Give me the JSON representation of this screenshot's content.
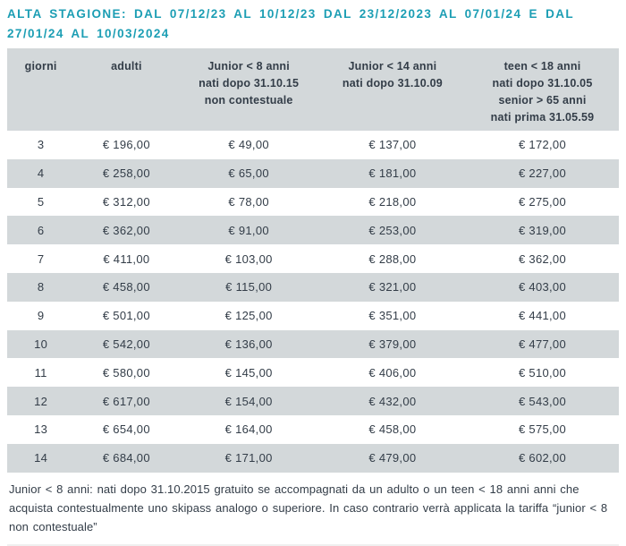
{
  "page": {
    "title": "ALTA STAGIONE: DAL 07/12/23 AL 10/12/23 DAL 23/12/2023 AL 07/01/24 E DAL 27/01/24 AL 10/03/2024",
    "note": "Junior < 8 anni: nati dopo 31.10.2015 gratuito se accompagnati da un adulto o un teen < 18 anni anni che acquista contestualmente uno skipass analogo o superiore. In caso contrario verrà applicata la tariffa “junior < 8 non contestuale”"
  },
  "colors": {
    "accent_teal": "#1C9EB4",
    "row_gray": "#D3D8DA",
    "text_dark": "#333D48"
  },
  "table": {
    "columns": [
      {
        "id": "giorni",
        "lines": [
          "giorni"
        ]
      },
      {
        "id": "adulti",
        "lines": [
          "adulti"
        ]
      },
      {
        "id": "junior8",
        "lines": [
          "Junior < 8 anni",
          "nati dopo 31.10.15",
          "non contestuale"
        ]
      },
      {
        "id": "junior14",
        "lines": [
          "Junior < 14 anni",
          "nati dopo 31.10.09"
        ]
      },
      {
        "id": "teen18",
        "lines": [
          "teen < 18 anni",
          "nati dopo 31.10.05",
          "senior > 65 anni",
          "nati prima 31.05.59"
        ]
      }
    ],
    "rows": [
      {
        "giorni": "3",
        "adulti": "€ 196,00",
        "junior8": "€ 49,00",
        "junior14": "€ 137,00",
        "teen18": "€ 172,00"
      },
      {
        "giorni": "4",
        "adulti": "€ 258,00",
        "junior8": "€ 65,00",
        "junior14": "€ 181,00",
        "teen18": "€ 227,00"
      },
      {
        "giorni": "5",
        "adulti": "€ 312,00",
        "junior8": "€ 78,00",
        "junior14": "€ 218,00",
        "teen18": "€ 275,00"
      },
      {
        "giorni": "6",
        "adulti": "€ 362,00",
        "junior8": "€ 91,00",
        "junior14": "€ 253,00",
        "teen18": "€ 319,00"
      },
      {
        "giorni": "7",
        "adulti": "€ 411,00",
        "junior8": "€ 103,00",
        "junior14": "€ 288,00",
        "teen18": "€ 362,00"
      },
      {
        "giorni": "8",
        "adulti": "€ 458,00",
        "junior8": "€ 115,00",
        "junior14": "€ 321,00",
        "teen18": "€ 403,00"
      },
      {
        "giorni": "9",
        "adulti": "€ 501,00",
        "junior8": "€ 125,00",
        "junior14": "€ 351,00",
        "teen18": "€ 441,00"
      },
      {
        "giorni": "10",
        "adulti": "€ 542,00",
        "junior8": "€ 136,00",
        "junior14": "€ 379,00",
        "teen18": "€ 477,00"
      },
      {
        "giorni": "11",
        "adulti": "€ 580,00",
        "junior8": "€ 145,00",
        "junior14": "€ 406,00",
        "teen18": "€ 510,00"
      },
      {
        "giorni": "12",
        "adulti": "€ 617,00",
        "junior8": "€ 154,00",
        "junior14": "€ 432,00",
        "teen18": "€ 543,00"
      },
      {
        "giorni": "13",
        "adulti": "€ 654,00",
        "junior8": "€ 164,00",
        "junior14": "€ 458,00",
        "teen18": "€ 575,00"
      },
      {
        "giorni": "14",
        "adulti": "€ 684,00",
        "junior8": "€ 171,00",
        "junior14": "€ 479,00",
        "teen18": "€ 602,00"
      }
    ]
  }
}
